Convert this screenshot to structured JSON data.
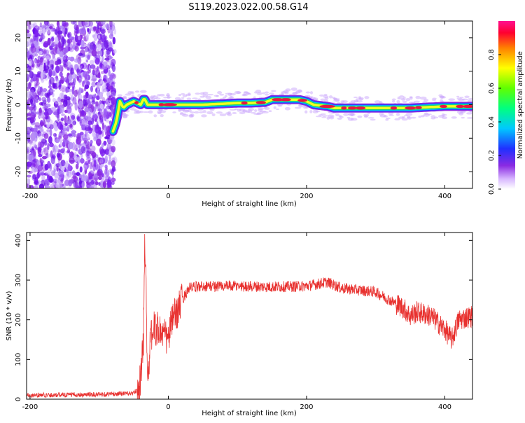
{
  "title": "S119.2023.022.00.58.G14",
  "colors": {
    "snr_line": "#e8312f",
    "spectrogram_noise": "#7a1cf0",
    "ridge_core": "#e81640",
    "ridge_halo": "#22d36a"
  },
  "colorbar": {
    "label": "Normalized spectral amplitude",
    "ticks": [
      "0.0",
      "0.2",
      "0.4",
      "0.6",
      "0.8"
    ],
    "tick_values": [
      0.0,
      0.2,
      0.4,
      0.6,
      0.8
    ],
    "range": [
      0,
      1
    ]
  },
  "chart_data": [
    {
      "type": "heatmap",
      "xlabel": "Height of straight line (km)",
      "ylabel": "Frequency (Hz)",
      "xlim": [
        -205,
        440
      ],
      "ylim": [
        -25,
        25
      ],
      "x_ticks": [
        "-200",
        "0",
        "200",
        "400"
      ],
      "x_tick_values": [
        -200,
        0,
        200,
        400
      ],
      "y_ticks": [
        "-20",
        "-10",
        "0",
        "10",
        "20"
      ],
      "y_tick_values": [
        -20,
        -10,
        0,
        10,
        20
      ],
      "noise_region_x": [
        -205,
        -80
      ],
      "ridge": {
        "x": [
          -80,
          -75,
          -70,
          -65,
          -60,
          -50,
          -40,
          -35,
          -30,
          -20,
          0,
          20,
          50,
          100,
          120,
          140,
          150,
          180,
          190,
          200,
          210,
          230,
          240,
          260,
          300,
          350,
          400,
          440
        ],
        "freq": [
          -8,
          -5,
          1,
          -1,
          0,
          1,
          0,
          2,
          0,
          0,
          0,
          0,
          0,
          0.5,
          0.5,
          0.7,
          1.5,
          1.5,
          1.5,
          1,
          0,
          -0.5,
          -1,
          -1,
          -1,
          -1,
          -0.5,
          -0.5
        ]
      },
      "grid": false,
      "legend": "none"
    },
    {
      "type": "line",
      "xlabel": "Height of straight line (km)",
      "ylabel": "SNR (10 * v/v)",
      "xlim": [
        -205,
        440
      ],
      "ylim": [
        0,
        420
      ],
      "x_ticks": [
        "-200",
        "0",
        "200",
        "400"
      ],
      "x_tick_values": [
        -200,
        0,
        200,
        400
      ],
      "y_ticks": [
        "0",
        "100",
        "200",
        "300",
        "400"
      ],
      "y_tick_values": [
        0,
        100,
        200,
        300,
        400
      ],
      "envelope": {
        "x": [
          -205,
          -100,
          -50,
          -42,
          -40,
          -36,
          -35,
          -34,
          -32,
          -30,
          -25,
          -20,
          -10,
          0,
          5,
          10,
          20,
          30,
          50,
          100,
          150,
          200,
          230,
          250,
          300,
          320,
          340,
          350,
          360,
          380,
          400,
          410,
          420,
          440
        ],
        "y": [
          10,
          12,
          15,
          30,
          60,
          140,
          280,
          420,
          260,
          50,
          160,
          180,
          170,
          150,
          200,
          210,
          250,
          280,
          285,
          285,
          283,
          285,
          295,
          280,
          270,
          250,
          230,
          210,
          220,
          210,
          175,
          150,
          200,
          210
        ]
      },
      "grid": false,
      "legend": "none"
    }
  ]
}
